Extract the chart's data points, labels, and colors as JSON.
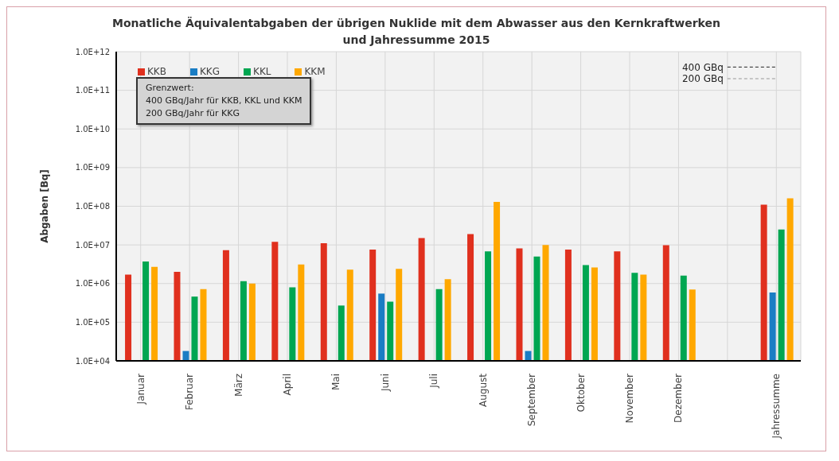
{
  "chart_data": {
    "type": "bar",
    "title": "Monatliche Äquivalentabgaben der übrigen Nuklide mit dem Abwasser aus den Kernkraftwerken\nund Jahressumme 2015",
    "ylabel": "Abgaben [Bq]",
    "categories": [
      "Januar",
      "Februar",
      "März",
      "April",
      "Mai",
      "Juni",
      "Juli",
      "August",
      "September",
      "Oktober",
      "November",
      "Dezember",
      null,
      "Jahressumme"
    ],
    "series": [
      {
        "name": "KKB",
        "color": "#e0301e",
        "values": [
          1700000.0,
          2000000.0,
          7300000.0,
          12000000.0,
          11000000.0,
          7600000.0,
          15000000.0,
          19000000.0,
          8100000.0,
          7600000.0,
          6800000.0,
          9800000.0,
          null,
          110000000.0
        ]
      },
      {
        "name": "KKG",
        "color": "#1a7dc4",
        "values": [
          null,
          18000.0,
          null,
          null,
          null,
          550000.0,
          null,
          null,
          18000.0,
          null,
          null,
          null,
          null,
          590000.0
        ]
      },
      {
        "name": "KKL",
        "color": "#00a651",
        "values": [
          3700000.0,
          460000.0,
          1150000.0,
          800000.0,
          270000.0,
          340000.0,
          720000.0,
          6800000.0,
          5000000.0,
          3000000.0,
          1900000.0,
          1600000.0,
          null,
          25000000.0
        ]
      },
      {
        "name": "KKM",
        "color": "#ffa800",
        "values": [
          2700000.0,
          720000.0,
          1000000.0,
          3100000.0,
          2300000.0,
          2400000.0,
          1300000.0,
          130000000.0,
          10000000.0,
          2600000.0,
          1700000.0,
          700000.0,
          null,
          160000000.0
        ]
      }
    ],
    "log": "y",
    "ylim": [
      10000.0,
      1000000000000.0
    ],
    "yticks": [
      {
        "value": 10000.0,
        "label": "1.0E+04"
      },
      {
        "value": 100000.0,
        "label": "1.0E+05"
      },
      {
        "value": 1000000.0,
        "label": "1.0E+06"
      },
      {
        "value": 10000000.0,
        "label": "1.0E+07"
      },
      {
        "value": 100000000.0,
        "label": "1.0E+08"
      },
      {
        "value": 1000000000.0,
        "label": "1.0E+09"
      },
      {
        "value": 10000000000.0,
        "label": "1.0E+10"
      },
      {
        "value": 100000000000.0,
        "label": "1.0E+11"
      },
      {
        "value": 1000000000000.0,
        "label": "1.0E+12"
      }
    ],
    "ref_lines": [
      {
        "axis": "y",
        "value": 400000000000.0,
        "label": "400 GBq",
        "color": "#222222",
        "line_style": "dashed"
      },
      {
        "axis": "y",
        "value": 200000000000.0,
        "label": "200 GBq",
        "color": "#999999",
        "line_style": "dashed"
      }
    ],
    "annotations": [
      "Grenzwert:",
      "400 GBq/Jahr für KKB, KKL und KKM",
      "200 GBq/Jahr für KKG"
    ],
    "grid": true,
    "legend": "top left"
  }
}
